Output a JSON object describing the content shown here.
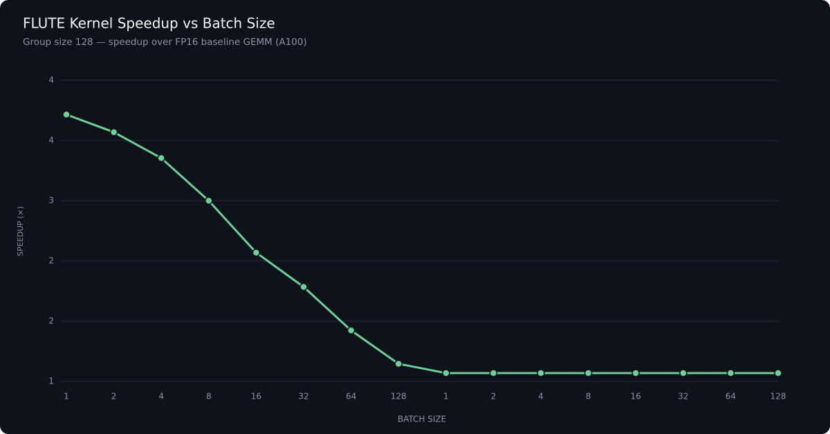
{
  "chart_data": {
    "type": "line",
    "title": "FLUTE Kernel Speedup vs Batch Size",
    "subtitle": "Group size 128 — speedup over FP16 baseline GEMM (A100)",
    "x_label": "BATCH SIZE",
    "y_label": "SPEEDUP (×)",
    "categories": [
      "1",
      "2",
      "4",
      "8",
      "16",
      "32",
      "64",
      "128",
      "1",
      "2",
      "4",
      "8",
      "16",
      "32",
      "64",
      "128"
    ],
    "series": [
      {
        "name": "Speedup",
        "color": "#6fcf97",
        "values": [
          3.88,
          3.69,
          3.41,
          2.95,
          2.39,
          2.02,
          1.55,
          1.19,
          1.09,
          1.09,
          1.09,
          1.09,
          1.09,
          1.09,
          1.09,
          1.09
        ]
      }
    ],
    "ylim": [
      1,
      4.25
    ],
    "yticks": [
      1,
      {
        "value": 1.65,
        "label": "2"
      },
      {
        "value": 2.3,
        "label": "2"
      },
      {
        "value": 2.95,
        "label": "3"
      },
      {
        "value": 3.6,
        "label": "4"
      },
      {
        "value": 4.25,
        "label": "4"
      }
    ],
    "grid": true
  }
}
